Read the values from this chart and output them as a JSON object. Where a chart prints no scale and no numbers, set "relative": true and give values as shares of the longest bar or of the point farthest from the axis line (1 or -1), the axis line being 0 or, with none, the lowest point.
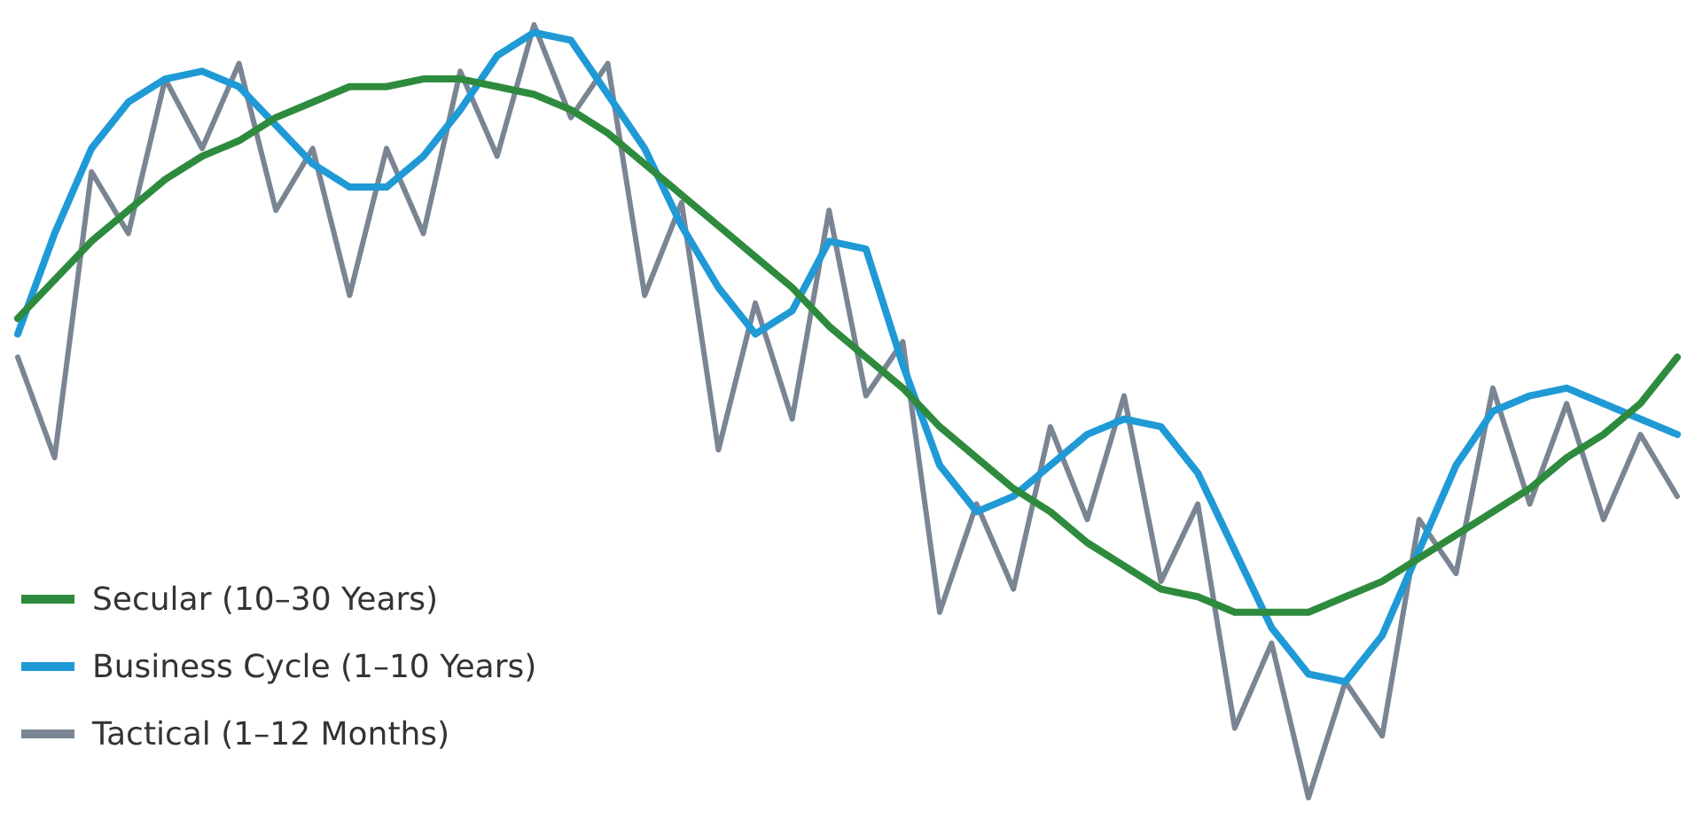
{
  "chart_data": {
    "type": "line",
    "relative": true,
    "legend": "bottom left",
    "line_style": "solid",
    "categories": [
      null,
      null,
      null,
      null,
      null,
      null,
      null,
      null,
      null,
      null,
      null,
      null,
      null,
      null,
      null,
      null,
      null,
      null,
      null,
      null,
      null,
      null,
      null,
      null,
      null,
      null,
      null,
      null,
      null,
      null,
      null,
      null,
      null,
      null,
      null,
      null,
      null,
      null,
      null,
      null,
      null,
      null,
      null,
      null,
      null,
      null
    ],
    "series": [
      {
        "name": "Secular (10–30 Years)",
        "color": "#2e8b3e",
        "values": [
          0.62,
          0.67,
          0.72,
          0.76,
          0.8,
          0.83,
          0.85,
          0.88,
          0.9,
          0.92,
          0.92,
          0.93,
          0.93,
          0.92,
          0.91,
          0.89,
          0.86,
          0.82,
          0.78,
          0.74,
          0.7,
          0.66,
          0.61,
          0.57,
          0.53,
          0.48,
          0.44,
          0.4,
          0.37,
          0.33,
          0.3,
          0.27,
          0.26,
          0.24,
          0.24,
          0.24,
          0.26,
          0.28,
          0.31,
          0.34,
          0.37,
          0.4,
          0.44,
          0.47,
          0.51,
          0.57
        ]
      },
      {
        "name": "Business Cycle (1–10 Years)",
        "color": "#1f9ad6",
        "values": [
          0.6,
          0.73,
          0.84,
          0.9,
          0.93,
          0.94,
          0.92,
          0.87,
          0.82,
          0.79,
          0.79,
          0.83,
          0.89,
          0.96,
          0.99,
          0.98,
          0.91,
          0.84,
          0.74,
          0.66,
          0.6,
          0.63,
          0.72,
          0.71,
          0.56,
          0.43,
          0.37,
          0.39,
          0.43,
          0.47,
          0.49,
          0.48,
          0.42,
          0.32,
          0.22,
          0.16,
          0.15,
          0.21,
          0.32,
          0.43,
          0.5,
          0.52,
          0.53,
          0.51,
          0.49,
          0.47
        ]
      },
      {
        "name": "Tactical (1–12 Months)",
        "color": "#7a8594",
        "values": [
          0.57,
          0.44,
          0.81,
          0.73,
          0.93,
          0.84,
          0.95,
          0.76,
          0.84,
          0.65,
          0.84,
          0.73,
          0.94,
          0.83,
          1,
          0.88,
          0.95,
          0.65,
          0.77,
          0.45,
          0.64,
          0.49,
          0.76,
          0.52,
          0.59,
          0.24,
          0.38,
          0.27,
          0.48,
          0.36,
          0.52,
          0.28,
          0.38,
          0.09,
          0.2,
          0,
          0.15,
          0.08,
          0.36,
          0.29,
          0.53,
          0.38,
          0.51,
          0.36,
          0.47,
          0.39
        ]
      }
    ]
  }
}
